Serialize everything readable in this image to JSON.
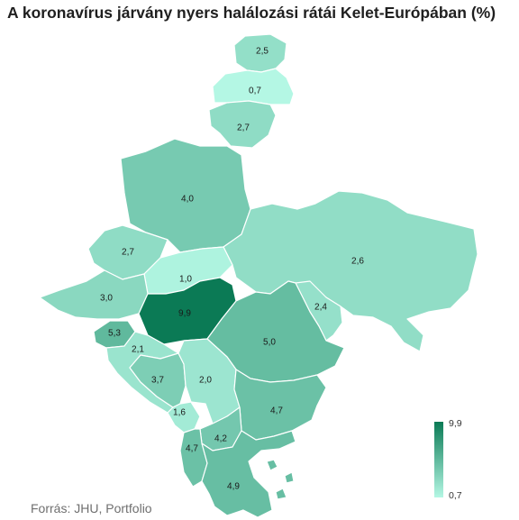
{
  "title": "A koronavírus járvány nyers halálozási rátái Kelet-Európában (%)",
  "source": "Forrás: JHU, Portfolio",
  "legend": {
    "max_label": "9,9",
    "min_label": "0,7",
    "max_value": 9.9,
    "min_value": 0.7,
    "color_max": "#0b7a55",
    "color_min": "#b4f7e4"
  },
  "countries": [
    {
      "id": "estonia",
      "label": "2,5",
      "value": 2.5
    },
    {
      "id": "latvia",
      "label": "0,7",
      "value": 0.7
    },
    {
      "id": "lithuania",
      "label": "2,7",
      "value": 2.7
    },
    {
      "id": "poland",
      "label": "4,0",
      "value": 4.0
    },
    {
      "id": "ukraine",
      "label": "2,6",
      "value": 2.6
    },
    {
      "id": "czechia",
      "label": "2,7",
      "value": 2.7
    },
    {
      "id": "slovakia",
      "label": "1,0",
      "value": 1.0
    },
    {
      "id": "austria",
      "label": "3,0",
      "value": 3.0
    },
    {
      "id": "hungary",
      "label": "9,9",
      "value": 9.9
    },
    {
      "id": "moldova",
      "label": "2,4",
      "value": 2.4
    },
    {
      "id": "slovenia",
      "label": "5,3",
      "value": 5.3
    },
    {
      "id": "croatia",
      "label": "2,1",
      "value": 2.1
    },
    {
      "id": "romania",
      "label": "5,0",
      "value": 5.0
    },
    {
      "id": "bosnia",
      "label": "3,7",
      "value": 3.7
    },
    {
      "id": "serbia",
      "label": "2,0",
      "value": 2.0
    },
    {
      "id": "montenegro",
      "label": "1,6",
      "value": 1.6
    },
    {
      "id": "bulgaria",
      "label": "4,7",
      "value": 4.7
    },
    {
      "id": "north_macedonia",
      "label": "4,2",
      "value": 4.2
    },
    {
      "id": "albania",
      "label": "4,7",
      "value": 4.7
    },
    {
      "id": "greece",
      "label": "4,9",
      "value": 4.9
    }
  ]
}
